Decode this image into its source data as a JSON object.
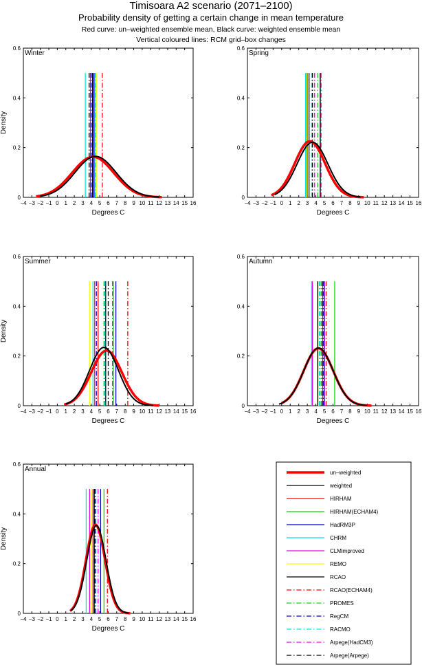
{
  "header": {
    "title": "Timisoara A2 scenario (2071–2100)",
    "subtitle": "Probability density of getting a certain change in mean temperature",
    "note1": "Red curve: un–weighted ensemble mean, Black curve: weighted ensemble mean",
    "note2": "Vertical coloured lines: RCM grid–box changes"
  },
  "chart_data": [
    {
      "type": "line",
      "title": "Winter",
      "xlabel": "Degrees C",
      "ylabel": "Density",
      "xlim": [
        -4,
        16
      ],
      "ylim": [
        0,
        0.6
      ],
      "xticks": [
        -4,
        -3,
        -2,
        -1,
        0,
        1,
        2,
        3,
        4,
        5,
        6,
        7,
        8,
        9,
        10,
        11,
        12,
        13,
        14,
        15,
        16
      ],
      "yticks": [
        0,
        0.2,
        0.4,
        0.6
      ],
      "curves": [
        {
          "name": "un-weighted",
          "mean": 4.2,
          "sd": 2.45,
          "range": [
            -2.5,
            12.3
          ]
        },
        {
          "name": "weighted",
          "mean": 4.5,
          "sd": 2.42,
          "range": [
            -2.0,
            12.0
          ]
        }
      ],
      "rcm_changes": {
        "HIRHAM": null,
        "HIRHAM(ECHAM4)": 4.4,
        "HadRM3P": 4.3,
        "CHRM": 3.3,
        "CLMimproved": 3.9,
        "REMO": 4.6,
        "RCAO": 4.15,
        "RCAO(ECHAM4)": 5.3,
        "PROMES": null,
        "RegCM": 4.0,
        "RACMO": 4.5,
        "Arpege(HadCM3)": null,
        "Arpege(Arpege)": 3.75
      }
    },
    {
      "type": "line",
      "title": "Spring",
      "xlabel": "Degrees C",
      "ylabel": "",
      "xlim": [
        -4,
        16
      ],
      "ylim": [
        0,
        0.6
      ],
      "xticks": [
        -4,
        -3,
        -2,
        -1,
        0,
        1,
        2,
        3,
        4,
        5,
        6,
        7,
        8,
        9,
        10,
        11,
        12,
        13,
        14,
        15,
        16
      ],
      "yticks": [
        0,
        0.2,
        0.4,
        0.6
      ],
      "curves": [
        {
          "name": "un-weighted",
          "mean": 3.3,
          "sd": 1.77,
          "range": [
            -1.2,
            9.6
          ]
        },
        {
          "name": "weighted",
          "mean": 3.6,
          "sd": 1.8,
          "range": [
            -0.8,
            9.2
          ]
        }
      ],
      "rcm_changes": {
        "HIRHAM": 3.0,
        "HIRHAM(ECHAM4)": 4.55,
        "HadRM3P": 4.5,
        "CHRM": 2.8,
        "CLMimproved": 2.9,
        "REMO": 2.95,
        "RCAO": 3.2,
        "RCAO(ECHAM4)": 4.6,
        "PROMES": 4.2,
        "RegCM": null,
        "RACMO": 3.5,
        "Arpege(HadCM3)": 3.85,
        "Arpege(Arpege)": 3.6
      }
    },
    {
      "type": "line",
      "title": "Summer",
      "xlabel": "Degrees C",
      "ylabel": "Density",
      "xlim": [
        -4,
        16
      ],
      "ylim": [
        0,
        0.6
      ],
      "xticks": [
        -4,
        -3,
        -2,
        -1,
        0,
        1,
        2,
        3,
        4,
        5,
        6,
        7,
        8,
        9,
        10,
        11,
        12,
        13,
        14,
        15,
        16
      ],
      "yticks": [
        0,
        0.2,
        0.4,
        0.6
      ],
      "curves": [
        {
          "name": "un-weighted",
          "mean": 5.8,
          "sd": 1.8,
          "range": [
            0.8,
            12.0
          ]
        },
        {
          "name": "weighted",
          "mean": 5.5,
          "sd": 1.7,
          "range": [
            1.0,
            11.3
          ]
        }
      ],
      "rcm_changes": {
        "HIRHAM": 4.8,
        "HIRHAM(ECHAM4)": 6.6,
        "HadRM3P": 6.9,
        "CHRM": 4.2,
        "CLMimproved": 4.4,
        "REMO": 3.8,
        "RCAO": 5.7,
        "RCAO(ECHAM4)": 8.3,
        "PROMES": 5.5,
        "RegCM": 4.6,
        "RACMO": 5.6,
        "Arpege(HadCM3)": 6.5,
        "Arpege(Arpege)": 6.0
      }
    },
    {
      "type": "line",
      "title": "Autumn",
      "xlabel": "Degrees C",
      "ylabel": "",
      "xlim": [
        -4,
        16
      ],
      "ylim": [
        0,
        0.6
      ],
      "xticks": [
        -4,
        -3,
        -2,
        -1,
        0,
        1,
        2,
        3,
        4,
        5,
        6,
        7,
        8,
        9,
        10,
        11,
        12,
        13,
        14,
        15,
        16
      ],
      "yticks": [
        0,
        0.2,
        0.4,
        0.6
      ],
      "curves": [
        {
          "name": "un-weighted",
          "mean": 4.3,
          "sd": 1.73,
          "range": [
            0.0,
            10.5
          ]
        },
        {
          "name": "weighted",
          "mean": 4.3,
          "sd": 1.72,
          "range": [
            -0.3,
            10.0
          ]
        }
      ],
      "rcm_changes": {
        "HIRHAM": 4.8,
        "HIRHAM(ECHAM4)": 6.2,
        "HadRM3P": 5.0,
        "CHRM": 3.5,
        "CLMimproved": 3.6,
        "REMO": 4.3,
        "RCAO": 4.2,
        "RCAO(ECHAM4)": 5.2,
        "PROMES": 4.5,
        "RegCM": 4.9,
        "RACMO": 4.4,
        "Arpege(HadCM3)": 5.0,
        "Arpege(Arpege)": 4.7
      }
    },
    {
      "type": "line",
      "title": "Annual",
      "xlabel": "Degrees C",
      "ylabel": "Density",
      "xlim": [
        -4,
        16
      ],
      "ylim": [
        0,
        0.6
      ],
      "xticks": [
        -4,
        -3,
        -2,
        -1,
        0,
        1,
        2,
        3,
        4,
        5,
        6,
        7,
        8,
        9,
        10,
        11,
        12,
        13,
        14,
        15,
        16
      ],
      "yticks": [
        0,
        0.2,
        0.4,
        0.6
      ],
      "curves": [
        {
          "name": "un-weighted",
          "mean": 4.5,
          "sd": 1.12,
          "range": [
            1.5,
            8.6
          ]
        },
        {
          "name": "weighted",
          "mean": 4.6,
          "sd": 1.13,
          "range": [
            1.6,
            8.4
          ]
        }
      ],
      "rcm_changes": {
        "HIRHAM": 4.2,
        "HIRHAM(ECHAM4)": 5.5,
        "HadRM3P": 5.1,
        "CHRM": 3.4,
        "CLMimproved": 3.8,
        "REMO": 4.0,
        "RCAO": 4.35,
        "RCAO(ECHAM4)": 5.9,
        "PROMES": 4.45,
        "RegCM": 4.5,
        "RACMO": 4.55,
        "Arpege(HadCM3)": 4.8,
        "Arpege(Arpege)": 4.4
      }
    }
  ],
  "legend": {
    "entries": [
      {
        "label": "un–weighted",
        "color": "#ff0000",
        "style": "thick"
      },
      {
        "label": "weighted",
        "color": "#000000",
        "style": "solid"
      },
      {
        "label": "HIRHAM",
        "color": "#ff0000",
        "style": "solid"
      },
      {
        "label": "HIRHAM(ECHAM4)",
        "color": "#00dd00",
        "style": "solid"
      },
      {
        "label": "HadRM3P",
        "color": "#0000cc",
        "style": "solid"
      },
      {
        "label": "CHRM",
        "color": "#00e5e5",
        "style": "solid"
      },
      {
        "label": "CLMimproved",
        "color": "#ee00ee",
        "style": "solid"
      },
      {
        "label": "REMO",
        "color": "#ffff00",
        "style": "solid"
      },
      {
        "label": "RCAO",
        "color": "#000000",
        "style": "solid"
      },
      {
        "label": "RCAO(ECHAM4)",
        "color": "#ff0000",
        "style": "dashdot"
      },
      {
        "label": "PROMES",
        "color": "#00dd00",
        "style": "dashdot"
      },
      {
        "label": "RegCM",
        "color": "#0000cc",
        "style": "dashdot"
      },
      {
        "label": "RACMO",
        "color": "#00e5e5",
        "style": "dashdot"
      },
      {
        "label": "Arpege(HadCM3)",
        "color": "#ee00ee",
        "style": "dashdot"
      },
      {
        "label": "Arpege(Arpege)",
        "color": "#000000",
        "style": "dashdot"
      }
    ]
  }
}
